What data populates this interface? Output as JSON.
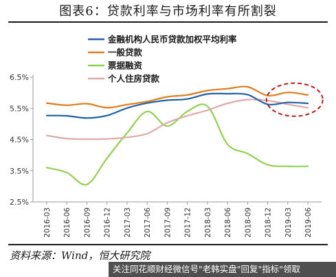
{
  "figure_title": "图表6：贷款利率与市场利率有所割裂",
  "source_note": "资料来源：Wind，恒大研究院",
  "footer_overlay": "关注同花顺财经微信号\"老韩实盘\"回复\"指标\"领取",
  "chart_data": {
    "type": "line",
    "x": [
      "2016-03",
      "2016-06",
      "2016-09",
      "2016-12",
      "2017-03",
      "2017-06",
      "2017-09",
      "2017-12",
      "2018-03",
      "2018-06",
      "2018-09",
      "2018-12",
      "2019-03",
      "2019-06"
    ],
    "ylim": [
      2.5,
      6.5
    ],
    "yticks": [
      "2.5%",
      "3.5%",
      "4.5%",
      "5.5%",
      "6.5%"
    ],
    "ytick_values": [
      2.5,
      3.5,
      4.5,
      5.5,
      6.5
    ],
    "legend_position": "top-left",
    "grid": false,
    "annotation": "dashed-ellipse highlighting 2018-12 to 2019-06",
    "series": [
      {
        "name": "金融机构人民币贷款加权平均利率",
        "color": "#1f5fa8",
        "values": [
          5.27,
          5.26,
          5.19,
          5.27,
          5.51,
          5.67,
          5.76,
          5.8,
          5.96,
          5.97,
          5.94,
          5.63,
          5.69,
          5.66
        ]
      },
      {
        "name": "一般贷款",
        "color": "#e07b1a",
        "values": [
          5.67,
          5.6,
          5.65,
          5.52,
          5.62,
          5.72,
          5.87,
          5.93,
          6.07,
          6.13,
          6.19,
          5.91,
          6.01,
          5.93
        ]
      },
      {
        "name": "票据融资",
        "color": "#8fd14f",
        "values": [
          3.6,
          3.44,
          3.06,
          3.9,
          4.71,
          5.4,
          4.93,
          5.4,
          5.57,
          4.35,
          4.05,
          3.69,
          3.64,
          3.64
        ]
      },
      {
        "name": "个人住房贷款",
        "color": "#e0a9a9",
        "values": [
          4.63,
          4.53,
          4.51,
          4.52,
          4.57,
          4.69,
          5.04,
          5.26,
          5.44,
          5.66,
          5.78,
          5.75,
          5.63,
          5.52
        ]
      }
    ]
  }
}
